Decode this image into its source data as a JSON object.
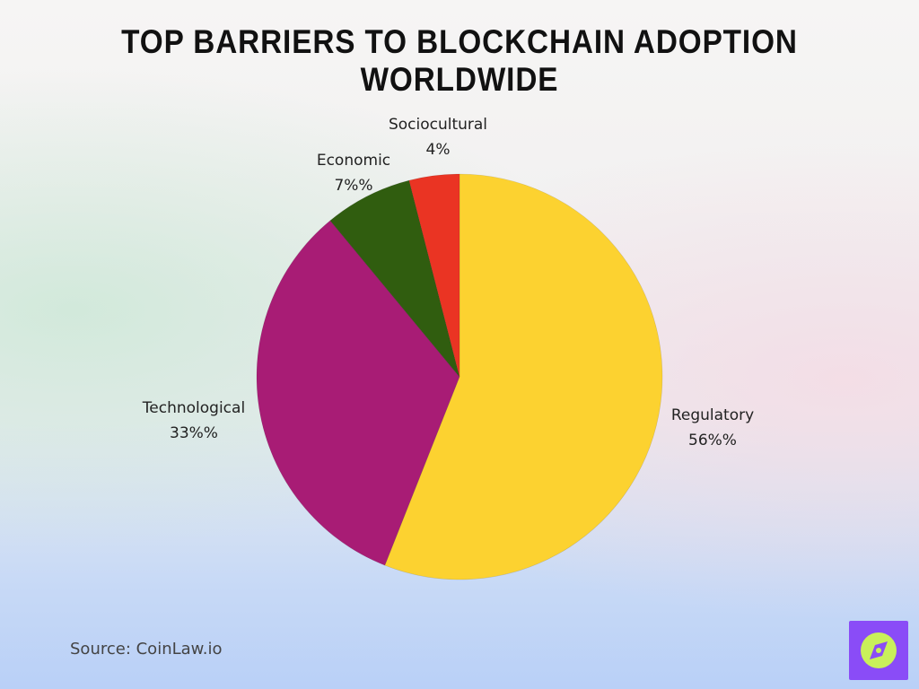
{
  "chart_data": {
    "type": "pie",
    "title": "Top Barriers to Blockchain Adoption Worldwide",
    "slices": [
      {
        "name": "Regulatory",
        "label": "56%%",
        "value": 56,
        "color": "#fcd230"
      },
      {
        "name": "Technological",
        "label": "33%%",
        "value": 33,
        "color": "#a81c75"
      },
      {
        "name": "Economic",
        "label": "7%%",
        "value": 7,
        "color": "#305d0f"
      },
      {
        "name": "Sociocultural",
        "label": "4%",
        "value": 4,
        "color": "#ea3423"
      }
    ],
    "start": "12 o'clock",
    "direction": "clockwise"
  },
  "footer": {
    "source": "Source: CoinLaw.io"
  },
  "logo": {
    "icon": "compass-icon",
    "background": "#8a4cf7",
    "accent": "#c9f05a"
  }
}
